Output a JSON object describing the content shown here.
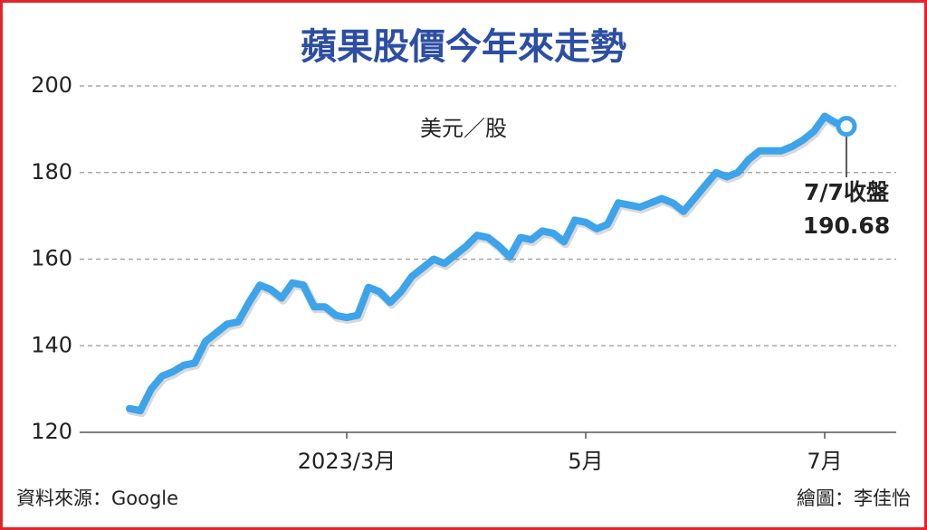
{
  "chart_data": {
    "type": "line",
    "title": "蘋果股價今年來走勢",
    "y_label": "美元／股",
    "annotation": "7/7收盤",
    "source": "資料來源：Google",
    "credit": "繪圖：李佳怡",
    "categories": [
      null,
      null,
      null,
      null,
      null,
      null,
      null,
      null,
      null,
      null,
      null,
      null,
      null,
      null,
      null,
      null,
      null,
      null,
      null,
      null,
      "2023/3月",
      null,
      null,
      null,
      null,
      null,
      null,
      null,
      null,
      null,
      null,
      null,
      null,
      null,
      null,
      null,
      null,
      null,
      null,
      null,
      null,
      null,
      "5月",
      null,
      null,
      null,
      null,
      null,
      null,
      null,
      null,
      null,
      null,
      null,
      null,
      null,
      null,
      null,
      null,
      null,
      null,
      null,
      null,
      null,
      "7月",
      null,
      null
    ],
    "values": [
      125.5,
      125,
      130,
      133,
      134,
      135.5,
      136,
      141,
      143,
      145,
      145.5,
      150,
      154,
      153,
      151,
      154.5,
      154,
      149,
      149,
      147,
      146.5,
      147,
      153.5,
      152.5,
      150,
      152.5,
      156,
      158,
      160,
      159,
      161,
      163,
      165.5,
      165,
      163,
      160.5,
      165,
      164.5,
      166.5,
      166,
      164,
      169,
      168.5,
      167,
      168,
      173,
      172.5,
      172,
      173,
      174,
      173,
      171,
      174,
      177,
      180,
      179,
      180,
      183,
      185,
      185,
      185,
      186,
      187.5,
      189.5,
      193,
      191.5,
      190.68
    ],
    "color": "#3da3ea",
    "ylim": [
      120,
      200
    ],
    "yticks": [
      120,
      140,
      160,
      180,
      200
    ],
    "grid": true
  }
}
